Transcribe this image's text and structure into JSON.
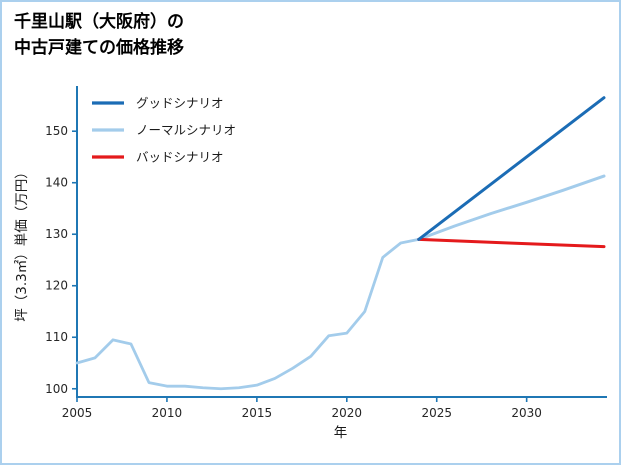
{
  "page": {
    "title_line1": "千里山駅（大阪府）の",
    "title_line2": "中古戸建ての価格推移"
  },
  "chart_data": {
    "type": "line",
    "title": "千里山駅（大阪府）の中古戸建ての価格推移",
    "xlabel": "年",
    "ylabel": "坪（3.3㎡）単価（万円）",
    "xlim": [
      2005,
      2034.3
    ],
    "ylim": [
      98.4,
      158
    ],
    "x_ticks": [
      2005,
      2010,
      2015,
      2020,
      2025,
      2030
    ],
    "y_ticks": [
      100,
      110,
      120,
      130,
      140,
      150
    ],
    "grid": false,
    "legend_position": "upper-left",
    "axis_color": "#1f77b4",
    "tick_label_color": "#262626",
    "legend": [
      {
        "label": "グッドシナリオ",
        "color": "#1b6cb5"
      },
      {
        "label": "ノーマルシナリオ",
        "color": "#a3cceb"
      },
      {
        "label": "バッドシナリオ",
        "color": "#e41a1c"
      }
    ],
    "series": [
      {
        "name": "history",
        "color": "#a3cceb",
        "width": 2.8,
        "x": [
          2005,
          2006,
          2007,
          2008,
          2009,
          2010,
          2011,
          2012,
          2013,
          2014,
          2015,
          2016,
          2017,
          2018,
          2019,
          2020,
          2021,
          2022,
          2023,
          2024
        ],
        "values": [
          105,
          106,
          109.5,
          108.7,
          101.2,
          100.5,
          100.5,
          100.2,
          100,
          100.2,
          100.7,
          102,
          104,
          106.3,
          110.3,
          110.8,
          115,
          125.5,
          128.3,
          129
        ]
      },
      {
        "name": "normal-scenario",
        "color": "#a3cceb",
        "width": 3,
        "x": [
          2024,
          2026,
          2028,
          2030,
          2032,
          2034.3
        ],
        "values": [
          129,
          131.6,
          134,
          136.2,
          138.5,
          141.3
        ]
      },
      {
        "name": "bad-scenario",
        "color": "#e41a1c",
        "width": 3,
        "x": [
          2024,
          2029,
          2034.3
        ],
        "values": [
          129,
          128.3,
          127.6
        ]
      },
      {
        "name": "good-scenario",
        "color": "#1b6cb5",
        "width": 3,
        "x": [
          2024,
          2034.3
        ],
        "values": [
          129,
          156.5
        ]
      }
    ]
  }
}
